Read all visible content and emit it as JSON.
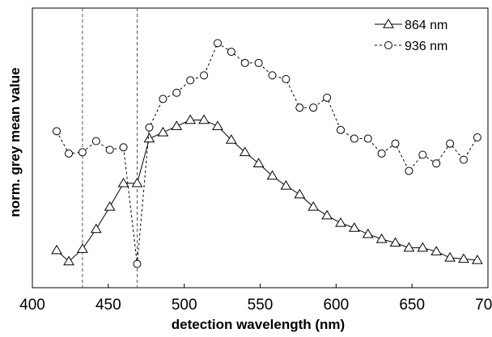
{
  "chart_data": {
    "type": "line",
    "title": "",
    "xlabel": "detection wavelength (nm)",
    "ylabel": "norm. grey mean value",
    "xlim": [
      400,
      700
    ],
    "ylim": [
      0,
      1
    ],
    "xticks": [
      400,
      450,
      500,
      550,
      600,
      650,
      700
    ],
    "yticks": [],
    "grid": false,
    "legend_position": "top-right",
    "reference_lines_x": [
      433,
      469
    ],
    "x": [
      416,
      424,
      433,
      442,
      451,
      460,
      469,
      477,
      486,
      495,
      504,
      513,
      522,
      531,
      540,
      549,
      558,
      567,
      576,
      585,
      594,
      603,
      612,
      621,
      630,
      639,
      648,
      657,
      666,
      675,
      684,
      693
    ],
    "series": [
      {
        "name": "864 nm",
        "marker": "triangle",
        "line_style": "solid",
        "color": "#000000",
        "values": [
          0.115,
          0.07,
          0.12,
          0.2,
          0.29,
          0.385,
          0.385,
          0.565,
          0.59,
          0.615,
          0.64,
          0.64,
          0.615,
          0.56,
          0.51,
          0.465,
          0.415,
          0.375,
          0.34,
          0.29,
          0.255,
          0.225,
          0.205,
          0.18,
          0.16,
          0.145,
          0.125,
          0.125,
          0.11,
          0.085,
          0.08,
          0.075
        ]
      },
      {
        "name": "936 nm",
        "marker": "circle",
        "line_style": "dashed",
        "color": "#000000",
        "values": [
          0.595,
          0.505,
          0.51,
          0.555,
          0.52,
          0.53,
          0.06,
          0.61,
          0.725,
          0.75,
          0.8,
          0.82,
          0.95,
          0.915,
          0.87,
          0.87,
          0.82,
          0.805,
          0.69,
          0.69,
          0.73,
          0.6,
          0.565,
          0.565,
          0.505,
          0.545,
          0.435,
          0.5,
          0.465,
          0.545,
          0.48,
          0.57
        ]
      }
    ]
  }
}
